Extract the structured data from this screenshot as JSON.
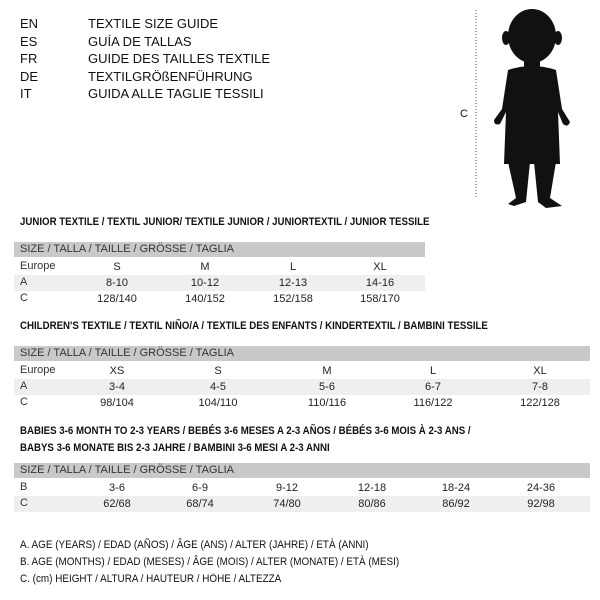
{
  "header": [
    {
      "code": "EN",
      "text": "TEXTILE SIZE GUIDE"
    },
    {
      "code": "ES",
      "text": "GUÍA DE TALLAS"
    },
    {
      "code": "FR",
      "text": "GUIDE DES TAILLES TEXTILE"
    },
    {
      "code": "DE",
      "text": "TEXTILGRÖßENFÜHRUNG"
    },
    {
      "code": "IT",
      "text": "GUIDA ALLE TAGLIE TESSILI"
    }
  ],
  "figure": {
    "label": "C"
  },
  "junior": {
    "title": "JUNIOR TEXTILE / TEXTIL JUNIOR/ TEXTILE JUNIOR / JUNIORTEXTIL / JUNIOR TESSILE",
    "size_header": "SIZE / TALLA / TAILLE / GRÖSSE / TAGLIA",
    "rows": [
      {
        "label": "Europe",
        "values": [
          "S",
          "M",
          "L",
          "XL"
        ]
      },
      {
        "label": "A",
        "values": [
          "8-10",
          "10-12",
          "12-13",
          "14-16"
        ]
      },
      {
        "label": "C",
        "values": [
          "128/140",
          "140/152",
          "152/158",
          "158/170"
        ]
      }
    ]
  },
  "children": {
    "title": "CHILDREN'S TEXTILE / TEXTIL NIÑO/A / TEXTILE DES ENFANTS / KINDERTEXTIL / BAMBINI TESSILE",
    "size_header": "SIZE / TALLA / TAILLE / GRÖSSE / TAGLIA",
    "rows": [
      {
        "label": "Europe",
        "values": [
          "XS",
          "S",
          "M",
          "L",
          "XL"
        ]
      },
      {
        "label": "A",
        "values": [
          "3-4",
          "4-5",
          "5-6",
          "6-7",
          "7-8"
        ]
      },
      {
        "label": "C",
        "values": [
          "98/104",
          "104/110",
          "110/116",
          "116/122",
          "122/128"
        ]
      }
    ]
  },
  "babies": {
    "title1": "BABIES 3-6 MONTH TO 2-3 YEARS / BEBÉS 3-6 MESES A 2-3 AÑOS / BÉBÉS 3-6 MOIS À 2-3 ANS /",
    "title2": "BABYS 3-6 MONATE BIS 2-3 JAHRE / BAMBINI 3-6 MESI A 2-3 ANNI",
    "size_header": "SIZE / TALLA / TAILLE / GRÖSSE / TAGLIA",
    "rows": [
      {
        "label": "B",
        "values": [
          "3-6",
          "6-9",
          "9-12",
          "12-18",
          "18-24",
          "24-36"
        ]
      },
      {
        "label": "C",
        "values": [
          "62/68",
          "68/74",
          "74/80",
          "80/86",
          "86/92",
          "92/98"
        ]
      }
    ]
  },
  "legend": [
    "A. AGE (YEARS) / EDAD (AÑOS) / ÂGE (ANS) / ALTER (JAHRE) / ETÀ (ANNI)",
    "B. AGE (MONTHS) / EDAD (MESES) / ÂGE (MOIS) / ALTER (MONATE) / ETÀ (MESI)",
    "C. (cm) HEIGHT / ALTURA / HAUTEUR / HÖHE / ALTEZZA"
  ]
}
